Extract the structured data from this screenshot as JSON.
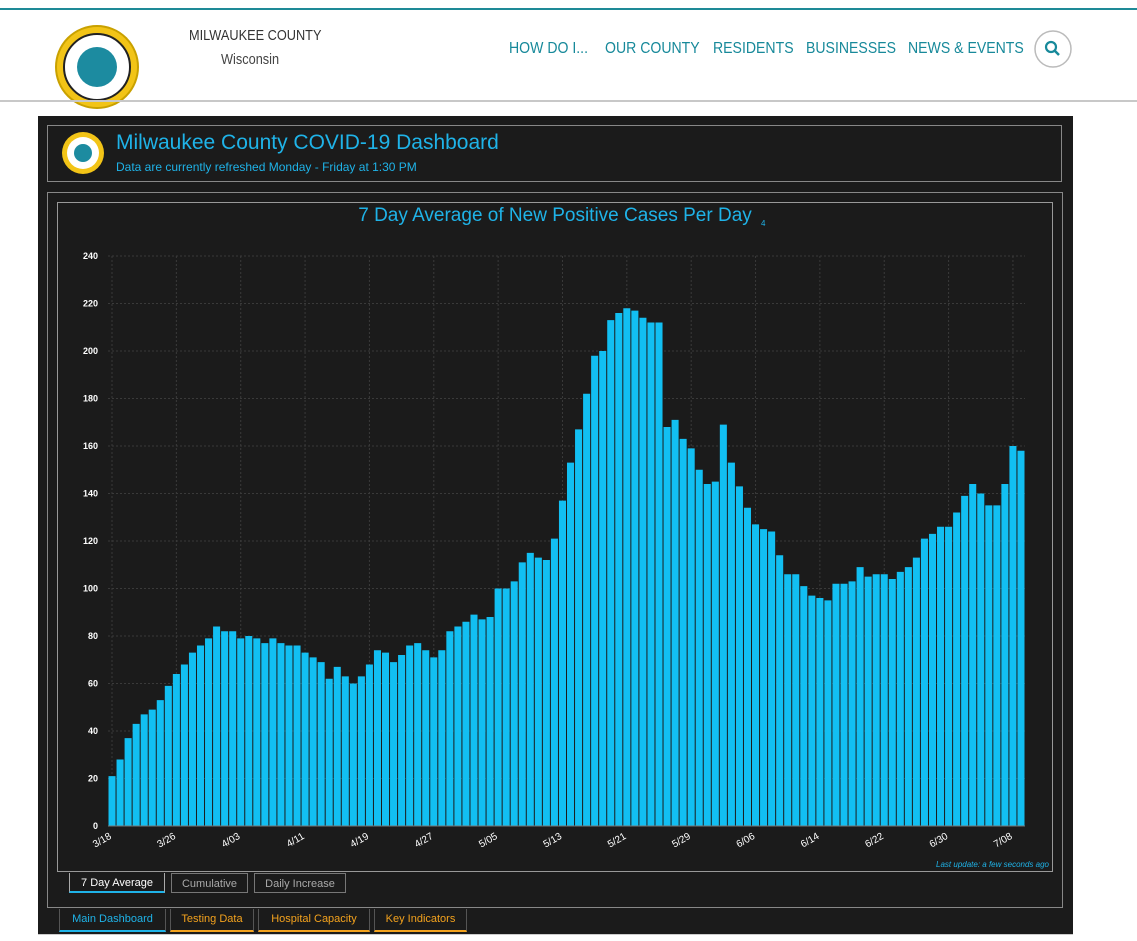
{
  "header": {
    "site_name": "MILWAUKEE COUNTY",
    "site_state": "Wisconsin",
    "nav": [
      "HOW DO I...",
      "OUR COUNTY",
      "RESIDENTS",
      "BUSINESSES",
      "NEWS & EVENTS"
    ]
  },
  "dashboard": {
    "title": "Milwaukee County COVID-19 Dashboard",
    "subtitle": "Data are currently refreshed Monday - Friday at 1:30 PM",
    "last_update": "Last update: a few seconds ago",
    "chart_tabs": [
      "7 Day Average",
      "Cumulative",
      "Daily Increase"
    ],
    "page_tabs": [
      "Main Dashboard",
      "Testing Data",
      "Hospital Capacity",
      "Key Indicators"
    ]
  },
  "chart_data": {
    "type": "bar",
    "title": "7 Day Average of New Positive Cases Per Day",
    "title_marker": "4",
    "color": "#12bff2",
    "grid": true,
    "categories": [
      "3/18",
      null,
      null,
      null,
      null,
      null,
      null,
      null,
      "3/26",
      null,
      null,
      null,
      null,
      null,
      null,
      null,
      "4/03",
      null,
      null,
      null,
      null,
      null,
      null,
      null,
      "4/11",
      null,
      null,
      null,
      null,
      null,
      null,
      null,
      "4/19",
      null,
      null,
      null,
      null,
      null,
      null,
      null,
      "4/27",
      null,
      null,
      null,
      null,
      null,
      null,
      null,
      "5/05",
      null,
      null,
      null,
      null,
      null,
      null,
      null,
      "5/13",
      null,
      null,
      null,
      null,
      null,
      null,
      null,
      "5/21",
      null,
      null,
      null,
      null,
      null,
      null,
      null,
      "5/29",
      null,
      null,
      null,
      null,
      null,
      null,
      null,
      "6/06",
      null,
      null,
      null,
      null,
      null,
      null,
      null,
      "6/14",
      null,
      null,
      null,
      null,
      null,
      null,
      null,
      "6/22",
      null,
      null,
      null,
      null,
      null,
      null,
      null,
      "6/30",
      null,
      null,
      null,
      null,
      null,
      null,
      null,
      "7/08",
      null
    ],
    "values": [
      21,
      28,
      37,
      43,
      47,
      49,
      53,
      59,
      64,
      68,
      73,
      76,
      79,
      84,
      82,
      82,
      79,
      80,
      79,
      77,
      79,
      77,
      76,
      76,
      73,
      71,
      69,
      62,
      67,
      63,
      60,
      63,
      68,
      74,
      73,
      69,
      72,
      76,
      77,
      74,
      71,
      74,
      82,
      84,
      86,
      89,
      87,
      88,
      100,
      100,
      103,
      111,
      115,
      113,
      112,
      121,
      137,
      153,
      167,
      182,
      198,
      200,
      213,
      216,
      218,
      217,
      214,
      212,
      212,
      168,
      171,
      163,
      159,
      150,
      144,
      145,
      169,
      153,
      143,
      134,
      127,
      125,
      124,
      114,
      106,
      106,
      101,
      97,
      96,
      95,
      102,
      102,
      103,
      109,
      105,
      106,
      106,
      104,
      107,
      109,
      113,
      121,
      123,
      126,
      126,
      132,
      139,
      144,
      140,
      135,
      135,
      144,
      160,
      158
    ],
    "ylim": [
      0,
      240
    ],
    "yticks": [
      0,
      20,
      40,
      60,
      80,
      100,
      120,
      140,
      160,
      180,
      200,
      220,
      240
    ]
  }
}
